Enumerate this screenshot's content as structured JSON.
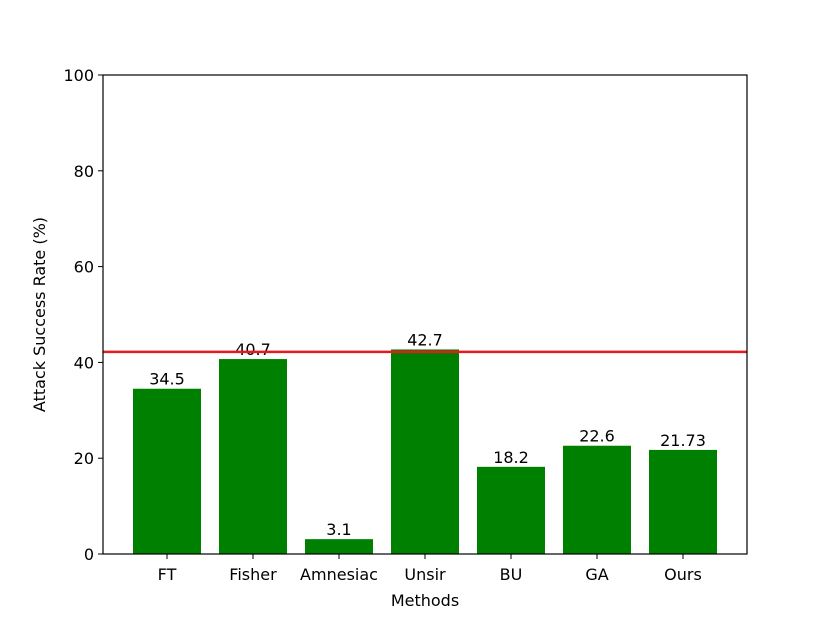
{
  "chart_data": {
    "type": "bar",
    "title": "",
    "xlabel": "Methods",
    "ylabel": "Attack Success Rate (%)",
    "categories": [
      "FT",
      "Fisher",
      "Amnesiac",
      "Unsir",
      "BU",
      "GA",
      "Ours"
    ],
    "values": [
      34.5,
      40.7,
      3.1,
      42.7,
      18.2,
      22.6,
      21.73
    ],
    "data_labels": [
      "34.5",
      "40.7",
      "3.1",
      "42.7",
      "18.2",
      "22.6",
      "21.73"
    ],
    "ylim": [
      0,
      100
    ],
    "yticks": [
      0,
      20,
      40,
      60,
      80,
      100
    ],
    "bar_color": "#008000",
    "reference_line": {
      "y": 42.2,
      "color": "#e41a1c"
    },
    "grid": false,
    "legend": "none"
  }
}
